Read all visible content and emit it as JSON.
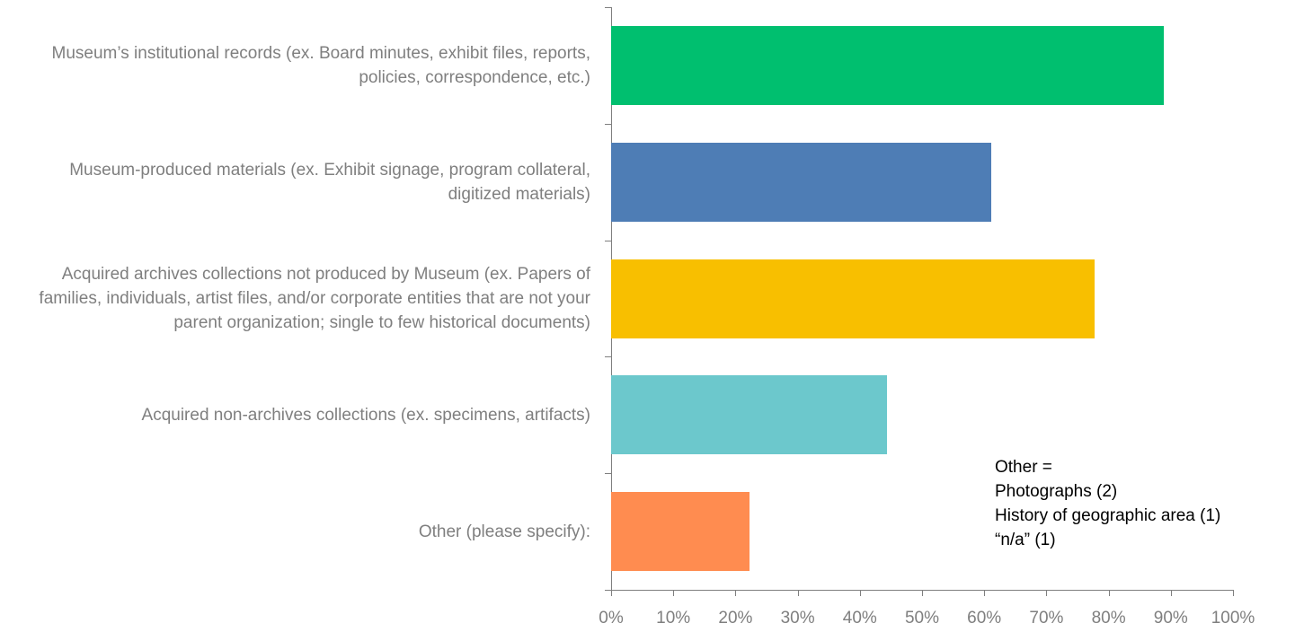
{
  "chart_data": {
    "type": "bar",
    "orientation": "horizontal",
    "categories": [
      "Museum’s institutional records (ex. Board minutes, exhibit files, reports, policies, correspondence, etc.)",
      "Museum-produced materials (ex. Exhibit signage, program collateral, digitized materials)",
      "Acquired archives collections not produced by Museum (ex. Papers of families, individuals, artist files, and/or corporate entities that are not your parent organization; single to few historical documents)",
      "Acquired non-archives collections (ex. specimens, artifacts)",
      "Other (please specify):"
    ],
    "values": [
      88.9,
      61.1,
      77.8,
      44.4,
      22.2
    ],
    "colors": [
      "#00bf6f",
      "#4e7db5",
      "#f8bf00",
      "#6cc8cc",
      "#ff8c50"
    ],
    "xlim": [
      0,
      100
    ],
    "xticks": [
      {
        "value": 0,
        "label": "0%"
      },
      {
        "value": 10,
        "label": "10%"
      },
      {
        "value": 20,
        "label": "20%"
      },
      {
        "value": 30,
        "label": "30%"
      },
      {
        "value": 40,
        "label": "40%"
      },
      {
        "value": 50,
        "label": "50%"
      },
      {
        "value": 60,
        "label": "60%"
      },
      {
        "value": 70,
        "label": "70%"
      },
      {
        "value": 80,
        "label": "80%"
      },
      {
        "value": 90,
        "label": "90%"
      },
      {
        "value": 100,
        "label": "100%"
      }
    ],
    "annotation": [
      "Other =",
      "Photographs (2)",
      "History of geographic area (1)",
      "“n/a” (1)"
    ]
  }
}
